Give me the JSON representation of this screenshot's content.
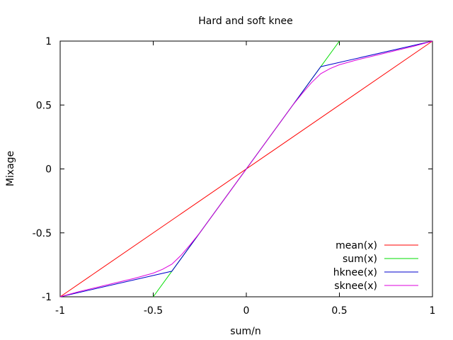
{
  "chart_data": {
    "type": "line",
    "title": "Hard and soft knee",
    "xlabel": "sum/n",
    "ylabel": "Mixage",
    "xlim": [
      -1,
      1
    ],
    "ylim": [
      -1,
      1
    ],
    "xticks": [
      -1,
      -0.5,
      0,
      0.5,
      1
    ],
    "yticks": [
      -1,
      -0.5,
      0,
      0.5,
      1
    ],
    "xtick_labels": [
      "-1",
      "-0.5",
      "0",
      "0.5",
      "1"
    ],
    "ytick_labels": [
      "-1",
      "-0.5",
      "0",
      "0.5",
      "1"
    ],
    "grid": false,
    "legend_position": "bottom-right",
    "series": [
      {
        "name": "mean(x)",
        "color": "#ff0000",
        "x": [
          -1,
          1
        ],
        "y": [
          -1,
          1
        ]
      },
      {
        "name": "sum(x)",
        "color": "#00dd00",
        "x": [
          -0.5,
          0.5
        ],
        "y": [
          -1,
          1
        ]
      },
      {
        "name": "hknee(x)",
        "color": "#0000cc",
        "x": [
          -1,
          -0.4,
          0.4,
          1
        ],
        "y": [
          -1,
          -0.8,
          0.8,
          1
        ]
      },
      {
        "name": "sknee(x)",
        "color": "#dd00dd",
        "x": [
          -1,
          -0.9,
          -0.8,
          -0.7,
          -0.6,
          -0.55,
          -0.5,
          -0.45,
          -0.4,
          -0.35,
          -0.3,
          -0.25,
          0,
          0.25,
          0.3,
          0.35,
          0.4,
          0.45,
          0.5,
          0.55,
          0.6,
          0.7,
          0.8,
          0.9,
          1
        ],
        "y": [
          -1,
          -0.96,
          -0.925,
          -0.89,
          -0.855,
          -0.835,
          -0.815,
          -0.785,
          -0.745,
          -0.675,
          -0.59,
          -0.5,
          0,
          0.5,
          0.59,
          0.675,
          0.745,
          0.785,
          0.815,
          0.835,
          0.855,
          0.89,
          0.925,
          0.96,
          1
        ]
      }
    ]
  }
}
